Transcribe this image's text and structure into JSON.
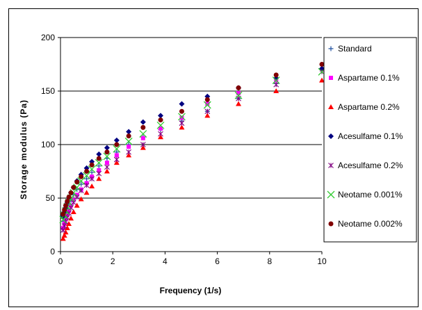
{
  "chart_data": {
    "type": "scatter",
    "title": "",
    "xlabel": "Frequency (1/s)",
    "ylabel": "Storage modulus  (Pa)",
    "xlim": [
      0,
      10
    ],
    "ylim": [
      0,
      200
    ],
    "x_ticks": [
      0,
      2,
      4,
      6,
      8,
      10
    ],
    "y_ticks": [
      0,
      50,
      100,
      150,
      200
    ],
    "grid": "horizontal",
    "legend_position": "right",
    "series": [
      {
        "name": "Standard",
        "marker": "plus",
        "color": "#1f4fa0",
        "x": [
          0.1,
          0.15,
          0.2,
          0.26,
          0.32,
          0.4,
          0.5,
          0.63,
          0.79,
          1.0,
          1.2,
          1.47,
          1.78,
          2.15,
          2.61,
          3.16,
          3.83,
          4.64,
          5.62,
          6.81,
          8.25,
          10.0
        ],
        "y": [
          28,
          32,
          36,
          40,
          44,
          48,
          53,
          58,
          63,
          68,
          74,
          80,
          87,
          93,
          100,
          107,
          114,
          122,
          131,
          143,
          157,
          175
        ]
      },
      {
        "name": "Aspartame 0.1%",
        "marker": "square",
        "color": "#ff00ff",
        "x": [
          0.1,
          0.15,
          0.2,
          0.26,
          0.32,
          0.4,
          0.5,
          0.63,
          0.79,
          1.0,
          1.2,
          1.47,
          1.78,
          2.15,
          2.61,
          3.16,
          3.83,
          4.64,
          5.62,
          6.81,
          8.25,
          10.0
        ],
        "y": [
          22,
          26,
          30,
          34,
          38,
          43,
          48,
          53,
          58,
          64,
          70,
          76,
          83,
          90,
          98,
          106,
          115,
          125,
          138,
          148,
          160,
          170
        ]
      },
      {
        "name": "Aspartame 0.2%",
        "marker": "triangle",
        "color": "#ff0000",
        "x": [
          0.1,
          0.15,
          0.2,
          0.26,
          0.32,
          0.4,
          0.5,
          0.63,
          0.79,
          1.0,
          1.2,
          1.47,
          1.78,
          2.15,
          2.61,
          3.16,
          3.83,
          4.64,
          5.62,
          6.81,
          8.25,
          10.0
        ],
        "y": [
          12,
          15,
          18,
          22,
          26,
          31,
          37,
          43,
          49,
          55,
          61,
          68,
          75,
          83,
          90,
          97,
          107,
          116,
          127,
          138,
          150,
          160
        ]
      },
      {
        "name": "Acesulfame 0.1%",
        "marker": "diamond",
        "color": "#000080",
        "x": [
          0.1,
          0.15,
          0.2,
          0.26,
          0.32,
          0.4,
          0.5,
          0.63,
          0.79,
          1.0,
          1.2,
          1.47,
          1.78,
          2.15,
          2.61,
          3.16,
          3.83,
          4.64,
          5.62,
          6.81,
          8.25,
          10.0
        ],
        "y": [
          33,
          37,
          41,
          46,
          50,
          55,
          60,
          66,
          72,
          78,
          84,
          91,
          97,
          104,
          112,
          121,
          127,
          138,
          145,
          153,
          162,
          171
        ]
      },
      {
        "name": "Acesulfame 0.2%",
        "marker": "star",
        "color": "#800080",
        "x": [
          0.1,
          0.15,
          0.2,
          0.26,
          0.32,
          0.4,
          0.5,
          0.63,
          0.79,
          1.0,
          1.2,
          1.47,
          1.78,
          2.15,
          2.61,
          3.16,
          3.83,
          4.64,
          5.62,
          6.81,
          8.25,
          10.0
        ],
        "y": [
          20,
          24,
          28,
          32,
          36,
          41,
          46,
          51,
          57,
          62,
          68,
          73,
          79,
          86,
          93,
          100,
          110,
          120,
          131,
          143,
          156,
          168
        ]
      },
      {
        "name": "Neotame 0.001%",
        "marker": "x",
        "color": "#33cc33",
        "x": [
          0.1,
          0.15,
          0.2,
          0.26,
          0.32,
          0.4,
          0.5,
          0.63,
          0.79,
          1.0,
          1.2,
          1.47,
          1.78,
          2.15,
          2.61,
          3.16,
          3.83,
          4.64,
          5.62,
          6.81,
          8.25,
          10.0
        ],
        "y": [
          30,
          34,
          38,
          42,
          46,
          50,
          55,
          60,
          66,
          71,
          77,
          83,
          89,
          96,
          103,
          110,
          118,
          126,
          137,
          146,
          160,
          168
        ]
      },
      {
        "name": "Neotame 0.002%",
        "marker": "circle",
        "color": "#800000",
        "x": [
          0.1,
          0.15,
          0.2,
          0.26,
          0.32,
          0.4,
          0.5,
          0.63,
          0.79,
          1.0,
          1.2,
          1.47,
          1.78,
          2.15,
          2.61,
          3.16,
          3.83,
          4.64,
          5.62,
          6.81,
          8.25,
          10.0
        ],
        "y": [
          35,
          39,
          43,
          47,
          51,
          55,
          60,
          65,
          70,
          75,
          81,
          87,
          93,
          100,
          108,
          116,
          123,
          131,
          142,
          153,
          165,
          175
        ]
      }
    ]
  }
}
